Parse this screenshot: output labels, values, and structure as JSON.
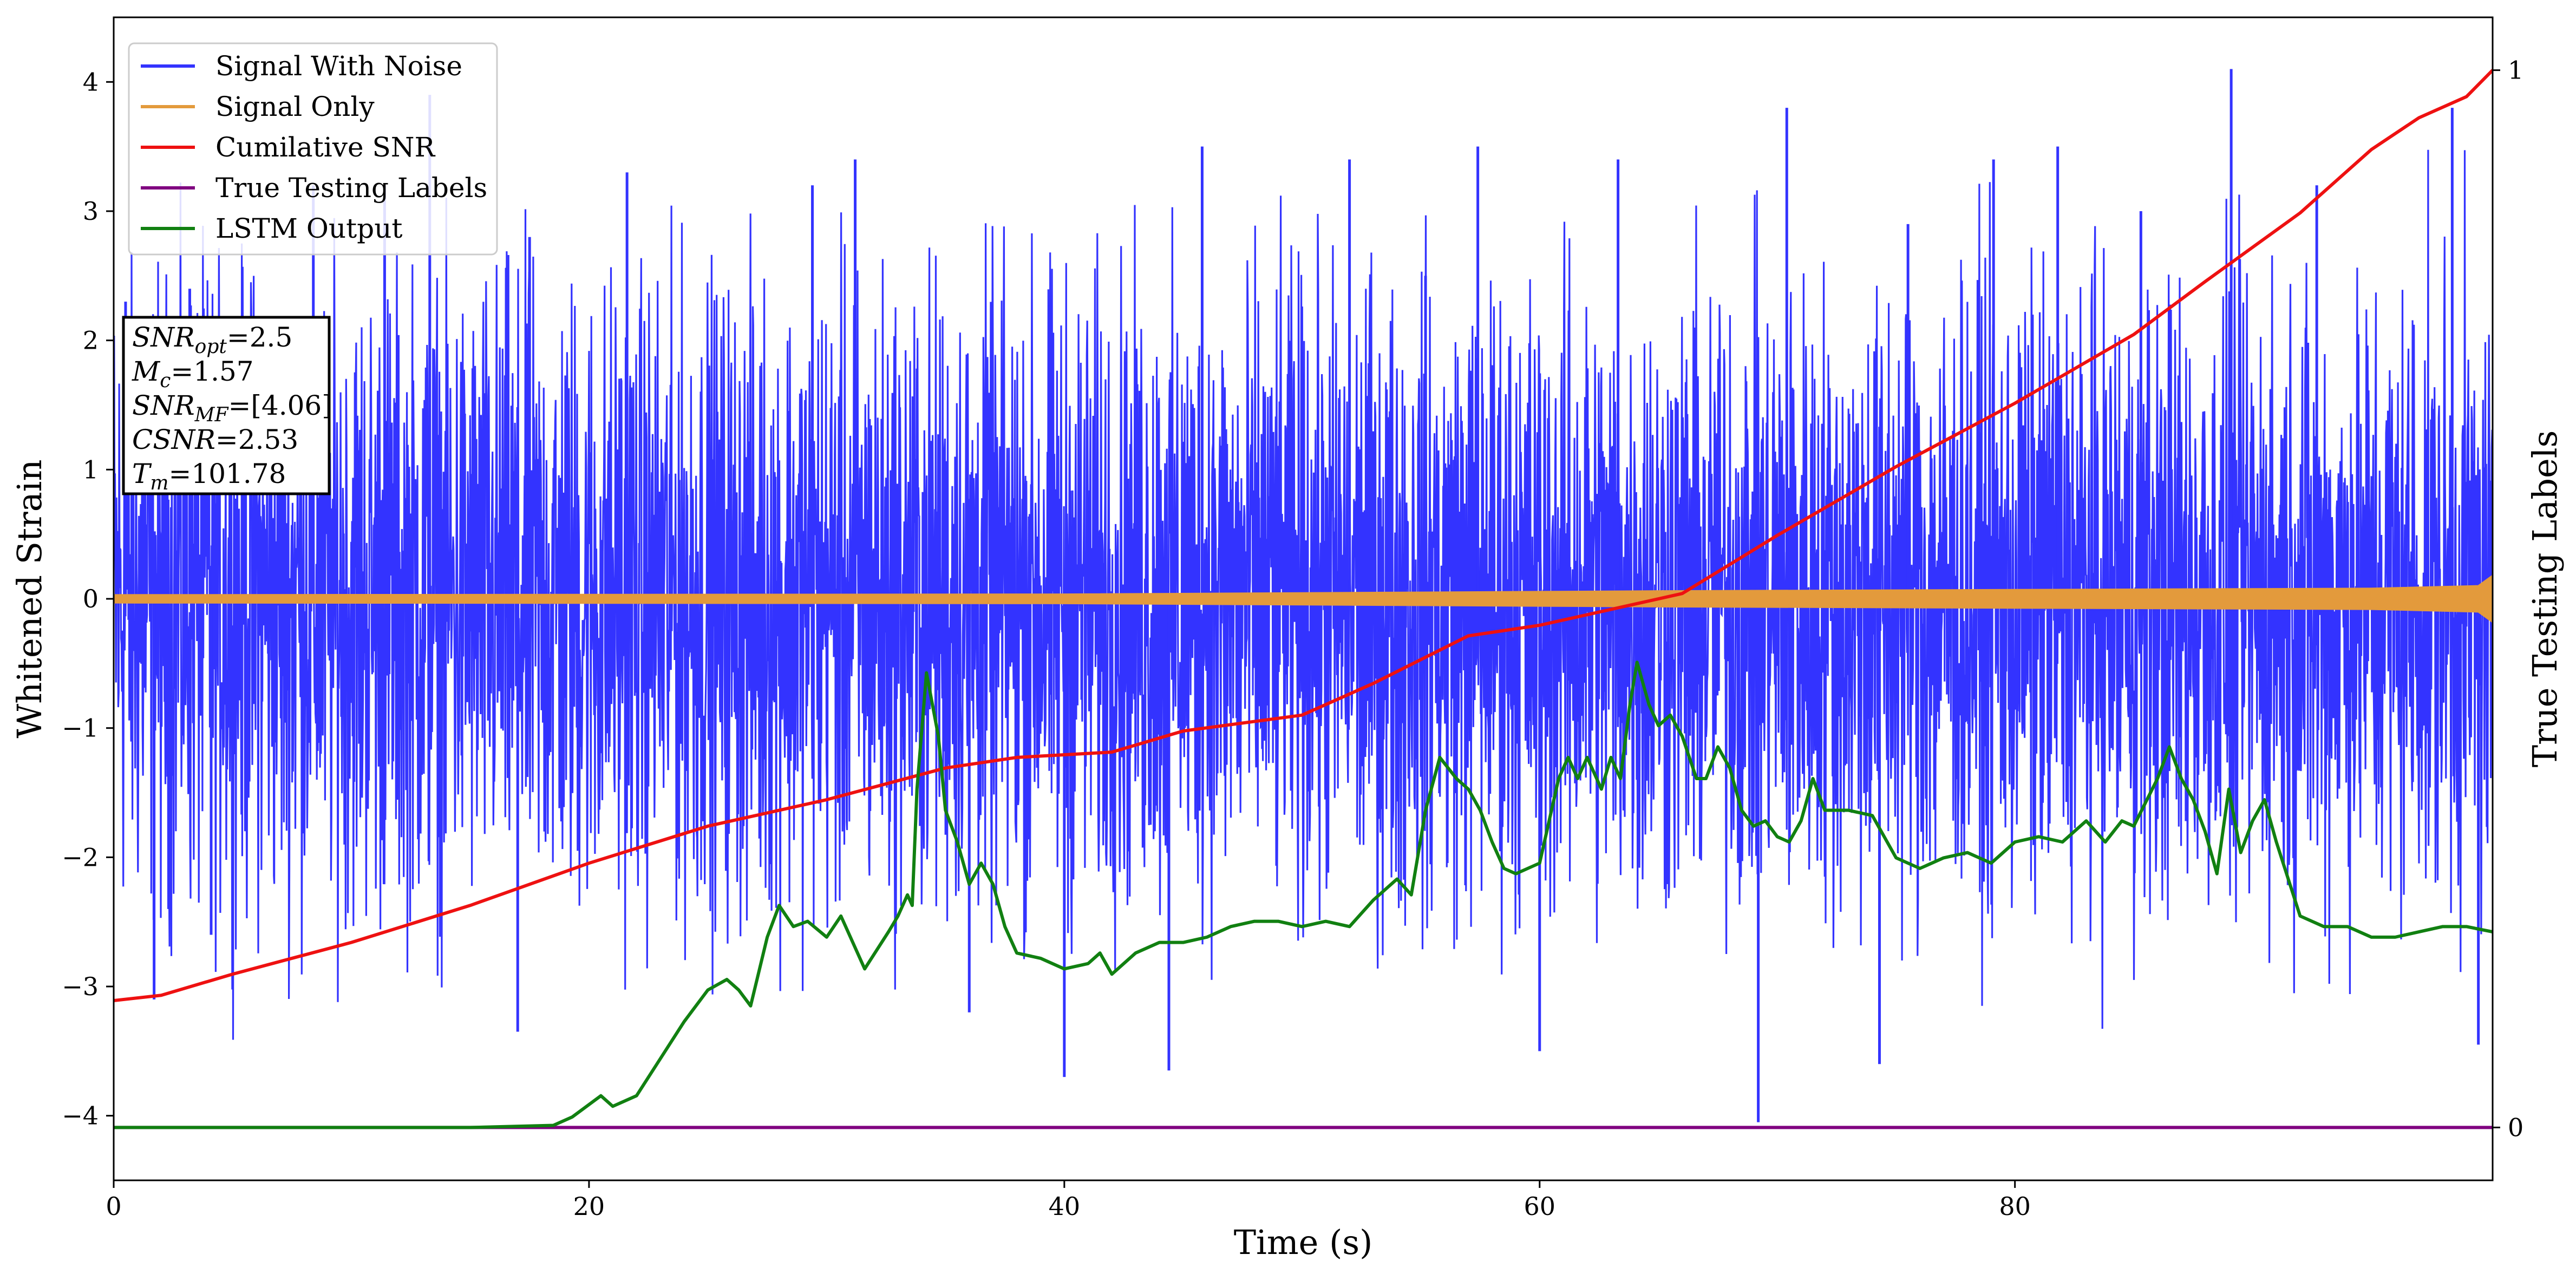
{
  "chart_data": {
    "type": "line",
    "xlabel": "Time (s)",
    "ylabel": "Whitened Strain",
    "y2label": "True Testing Labels",
    "xlim": [
      0,
      100.1
    ],
    "ylim": [
      -4.5,
      4.5
    ],
    "y2lim": [
      -0.05,
      1.05
    ],
    "xticks": [
      0,
      20,
      40,
      60,
      80
    ],
    "yticks": [
      -4,
      -3,
      -2,
      -1,
      0,
      1,
      2,
      3,
      4
    ],
    "y2ticks": [
      0,
      1
    ],
    "grid": false,
    "legend_position": "top-left",
    "colors": {
      "noise": "#3333ff",
      "signal": "#e39a3c",
      "csnr": "#ee1111",
      "labels": "#800080",
      "lstm": "#118011"
    },
    "series": [
      {
        "name": "Signal With Noise",
        "axis": "left",
        "description_band": {
          "typical_amplitude": 1.2
        },
        "extremes": [
          {
            "x": 0.5,
            "y": 2.3
          },
          {
            "x": 1.7,
            "y": -3.1
          },
          {
            "x": 3.2,
            "y": 2.4
          },
          {
            "x": 4.1,
            "y": -2.6
          },
          {
            "x": 8.4,
            "y": 3.2
          },
          {
            "x": 11.4,
            "y": 3.2
          },
          {
            "x": 13.3,
            "y": 3.9
          },
          {
            "x": 17.0,
            "y": -3.35
          },
          {
            "x": 17.5,
            "y": 2.8
          },
          {
            "x": 21.6,
            "y": 3.3
          },
          {
            "x": 29.4,
            "y": 3.2
          },
          {
            "x": 31.2,
            "y": 3.4
          },
          {
            "x": 36.0,
            "y": -3.2
          },
          {
            "x": 40.0,
            "y": -3.7
          },
          {
            "x": 44.4,
            "y": -3.65
          },
          {
            "x": 45.8,
            "y": 3.5
          },
          {
            "x": 52.0,
            "y": 3.4
          },
          {
            "x": 55.2,
            "y": 2.5
          },
          {
            "x": 57.4,
            "y": 3.5
          },
          {
            "x": 60.0,
            "y": -3.5
          },
          {
            "x": 63.3,
            "y": 3.4
          },
          {
            "x": 69.2,
            "y": -4.05
          },
          {
            "x": 70.4,
            "y": 3.8
          },
          {
            "x": 74.3,
            "y": -3.6
          },
          {
            "x": 75.5,
            "y": 2.9
          },
          {
            "x": 79.1,
            "y": 3.4
          },
          {
            "x": 81.8,
            "y": 3.5
          },
          {
            "x": 85.3,
            "y": 3.0
          },
          {
            "x": 89.1,
            "y": 4.1
          },
          {
            "x": 92.7,
            "y": 3.2
          },
          {
            "x": 98.4,
            "y": 3.8
          },
          {
            "x": 99.5,
            "y": -3.45
          }
        ]
      },
      {
        "name": "Signal Only",
        "axis": "left",
        "amplitude": [
          {
            "x": 0,
            "y": 0.03
          },
          {
            "x": 40,
            "y": 0.035
          },
          {
            "x": 55,
            "y": 0.05
          },
          {
            "x": 65,
            "y": 0.06
          },
          {
            "x": 80,
            "y": 0.07
          },
          {
            "x": 95,
            "y": 0.08
          },
          {
            "x": 99.5,
            "y": 0.1
          },
          {
            "x": 100.1,
            "y": 0.18
          }
        ]
      },
      {
        "name": "Cumilative SNR",
        "axis": "right",
        "points": [
          {
            "x": 0,
            "y": 0.12
          },
          {
            "x": 2,
            "y": 0.125
          },
          {
            "x": 5,
            "y": 0.145
          },
          {
            "x": 10,
            "y": 0.175
          },
          {
            "x": 15,
            "y": 0.21
          },
          {
            "x": 20,
            "y": 0.25
          },
          {
            "x": 25,
            "y": 0.285
          },
          {
            "x": 30,
            "y": 0.31
          },
          {
            "x": 35,
            "y": 0.34
          },
          {
            "x": 38,
            "y": 0.35
          },
          {
            "x": 42,
            "y": 0.355
          },
          {
            "x": 45,
            "y": 0.375
          },
          {
            "x": 50,
            "y": 0.39
          },
          {
            "x": 53,
            "y": 0.42
          },
          {
            "x": 57,
            "y": 0.465
          },
          {
            "x": 60,
            "y": 0.475
          },
          {
            "x": 63,
            "y": 0.49
          },
          {
            "x": 66,
            "y": 0.505
          },
          {
            "x": 70,
            "y": 0.56
          },
          {
            "x": 75,
            "y": 0.625
          },
          {
            "x": 80,
            "y": 0.685
          },
          {
            "x": 85,
            "y": 0.75
          },
          {
            "x": 88,
            "y": 0.8
          },
          {
            "x": 92,
            "y": 0.865
          },
          {
            "x": 95,
            "y": 0.925
          },
          {
            "x": 97,
            "y": 0.955
          },
          {
            "x": 99,
            "y": 0.975
          },
          {
            "x": 100.1,
            "y": 1.0
          }
        ]
      },
      {
        "name": "True Testing Labels",
        "axis": "right",
        "points": [
          {
            "x": 0,
            "y": 0
          },
          {
            "x": 100.1,
            "y": 0
          }
        ]
      },
      {
        "name": "LSTM Output",
        "axis": "right",
        "points": [
          {
            "x": 0,
            "y": 0.0
          },
          {
            "x": 15,
            "y": 0.0
          },
          {
            "x": 18.5,
            "y": 0.002
          },
          {
            "x": 19.3,
            "y": 0.01
          },
          {
            "x": 20.5,
            "y": 0.03
          },
          {
            "x": 21.0,
            "y": 0.02
          },
          {
            "x": 22.0,
            "y": 0.03
          },
          {
            "x": 23.0,
            "y": 0.065
          },
          {
            "x": 24.0,
            "y": 0.1
          },
          {
            "x": 25.0,
            "y": 0.13
          },
          {
            "x": 25.8,
            "y": 0.14
          },
          {
            "x": 26.3,
            "y": 0.13
          },
          {
            "x": 26.8,
            "y": 0.115
          },
          {
            "x": 27.5,
            "y": 0.18
          },
          {
            "x": 28.0,
            "y": 0.21
          },
          {
            "x": 28.6,
            "y": 0.19
          },
          {
            "x": 29.2,
            "y": 0.195
          },
          {
            "x": 30.0,
            "y": 0.18
          },
          {
            "x": 30.6,
            "y": 0.2
          },
          {
            "x": 31.6,
            "y": 0.15
          },
          {
            "x": 32.6,
            "y": 0.185
          },
          {
            "x": 33.0,
            "y": 0.2
          },
          {
            "x": 33.4,
            "y": 0.22
          },
          {
            "x": 33.6,
            "y": 0.21
          },
          {
            "x": 33.8,
            "y": 0.32
          },
          {
            "x": 34.2,
            "y": 0.43
          },
          {
            "x": 34.7,
            "y": 0.37
          },
          {
            "x": 35.0,
            "y": 0.3
          },
          {
            "x": 35.5,
            "y": 0.27
          },
          {
            "x": 36.0,
            "y": 0.23
          },
          {
            "x": 36.5,
            "y": 0.25
          },
          {
            "x": 37.0,
            "y": 0.23
          },
          {
            "x": 37.5,
            "y": 0.19
          },
          {
            "x": 38.0,
            "y": 0.165
          },
          {
            "x": 39.0,
            "y": 0.16
          },
          {
            "x": 40.0,
            "y": 0.15
          },
          {
            "x": 41.0,
            "y": 0.155
          },
          {
            "x": 41.5,
            "y": 0.165
          },
          {
            "x": 42.0,
            "y": 0.145
          },
          {
            "x": 43.0,
            "y": 0.165
          },
          {
            "x": 44.0,
            "y": 0.175
          },
          {
            "x": 45.0,
            "y": 0.175
          },
          {
            "x": 46.0,
            "y": 0.18
          },
          {
            "x": 47.0,
            "y": 0.19
          },
          {
            "x": 48.0,
            "y": 0.195
          },
          {
            "x": 49.0,
            "y": 0.195
          },
          {
            "x": 50.0,
            "y": 0.19
          },
          {
            "x": 51.0,
            "y": 0.195
          },
          {
            "x": 52.0,
            "y": 0.19
          },
          {
            "x": 53.0,
            "y": 0.215
          },
          {
            "x": 54.0,
            "y": 0.235
          },
          {
            "x": 54.6,
            "y": 0.22
          },
          {
            "x": 55.2,
            "y": 0.3
          },
          {
            "x": 55.8,
            "y": 0.35
          },
          {
            "x": 56.5,
            "y": 0.33
          },
          {
            "x": 57.0,
            "y": 0.32
          },
          {
            "x": 57.5,
            "y": 0.3
          },
          {
            "x": 58.0,
            "y": 0.27
          },
          {
            "x": 58.5,
            "y": 0.245
          },
          {
            "x": 59.0,
            "y": 0.24
          },
          {
            "x": 59.5,
            "y": 0.245
          },
          {
            "x": 60.0,
            "y": 0.25
          },
          {
            "x": 60.8,
            "y": 0.33
          },
          {
            "x": 61.2,
            "y": 0.35
          },
          {
            "x": 61.6,
            "y": 0.33
          },
          {
            "x": 62.0,
            "y": 0.35
          },
          {
            "x": 62.6,
            "y": 0.32
          },
          {
            "x": 63.0,
            "y": 0.35
          },
          {
            "x": 63.4,
            "y": 0.33
          },
          {
            "x": 63.8,
            "y": 0.4
          },
          {
            "x": 64.1,
            "y": 0.44
          },
          {
            "x": 64.6,
            "y": 0.4
          },
          {
            "x": 65.0,
            "y": 0.38
          },
          {
            "x": 65.5,
            "y": 0.39
          },
          {
            "x": 66.0,
            "y": 0.37
          },
          {
            "x": 66.6,
            "y": 0.33
          },
          {
            "x": 67.0,
            "y": 0.33
          },
          {
            "x": 67.5,
            "y": 0.36
          },
          {
            "x": 68.0,
            "y": 0.34
          },
          {
            "x": 68.5,
            "y": 0.3
          },
          {
            "x": 69.0,
            "y": 0.285
          },
          {
            "x": 69.5,
            "y": 0.29
          },
          {
            "x": 70.0,
            "y": 0.275
          },
          {
            "x": 70.5,
            "y": 0.27
          },
          {
            "x": 71.0,
            "y": 0.29
          },
          {
            "x": 71.5,
            "y": 0.33
          },
          {
            "x": 72.0,
            "y": 0.3
          },
          {
            "x": 73.0,
            "y": 0.3
          },
          {
            "x": 74.0,
            "y": 0.295
          },
          {
            "x": 75.0,
            "y": 0.255
          },
          {
            "x": 76.0,
            "y": 0.245
          },
          {
            "x": 77.0,
            "y": 0.255
          },
          {
            "x": 78.0,
            "y": 0.26
          },
          {
            "x": 79.0,
            "y": 0.25
          },
          {
            "x": 80.0,
            "y": 0.27
          },
          {
            "x": 81.0,
            "y": 0.275
          },
          {
            "x": 82.0,
            "y": 0.27
          },
          {
            "x": 83.0,
            "y": 0.29
          },
          {
            "x": 83.8,
            "y": 0.27
          },
          {
            "x": 84.5,
            "y": 0.29
          },
          {
            "x": 85.0,
            "y": 0.285
          },
          {
            "x": 86.0,
            "y": 0.33
          },
          {
            "x": 86.5,
            "y": 0.36
          },
          {
            "x": 87.0,
            "y": 0.33
          },
          {
            "x": 87.5,
            "y": 0.31
          },
          {
            "x": 88.0,
            "y": 0.28
          },
          {
            "x": 88.5,
            "y": 0.24
          },
          {
            "x": 89.0,
            "y": 0.32
          },
          {
            "x": 89.5,
            "y": 0.26
          },
          {
            "x": 90.0,
            "y": 0.29
          },
          {
            "x": 90.5,
            "y": 0.31
          },
          {
            "x": 91.0,
            "y": 0.27
          },
          {
            "x": 92.0,
            "y": 0.2
          },
          {
            "x": 93.0,
            "y": 0.19
          },
          {
            "x": 94.0,
            "y": 0.19
          },
          {
            "x": 95.0,
            "y": 0.18
          },
          {
            "x": 96.0,
            "y": 0.18
          },
          {
            "x": 97.0,
            "y": 0.185
          },
          {
            "x": 98.0,
            "y": 0.19
          },
          {
            "x": 99.0,
            "y": 0.19
          },
          {
            "x": 100.1,
            "y": 0.185
          }
        ]
      }
    ],
    "annotation": {
      "lines": [
        {
          "label": "SNR",
          "sub": "opt",
          "value": "=2.5"
        },
        {
          "label": "M",
          "sub": "c",
          "value": "=1.57"
        },
        {
          "label": "SNR",
          "sub": "MF",
          "value": "=[4.06]"
        },
        {
          "label": "CSNR",
          "sub": "",
          "value": "=2.53"
        },
        {
          "label": "T",
          "sub": "m",
          "value": "=101.78"
        }
      ]
    }
  }
}
